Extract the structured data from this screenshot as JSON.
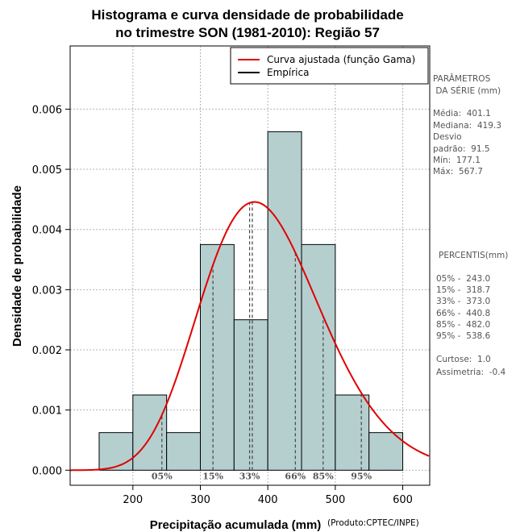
{
  "chart_data": {
    "type": "bar",
    "title_lines": [
      "Histograma e curva densidade de probabilidade",
      "no trimestre SON (1981-2010): Região 57"
    ],
    "xlabel": "Precipitação acumulada (mm)",
    "ylabel": "Densidade de probabilidade",
    "credit": "(Produto:CPTEC/INPE)",
    "xlim": [
      107,
      640
    ],
    "ylim": [
      -0.00025,
      0.00705
    ],
    "xticks": [
      200,
      300,
      400,
      500,
      600
    ],
    "yticks": [
      0.0,
      0.001,
      0.002,
      0.003,
      0.004,
      0.005,
      0.006
    ],
    "ytick_labels": [
      "0.000",
      "0.001",
      "0.002",
      "0.003",
      "0.004",
      "0.005",
      "0.006"
    ],
    "bar_color": "#b5cfcf",
    "curve_color": "#e00000",
    "bins": [
      {
        "from": 150,
        "to": 200,
        "density": 0.000625
      },
      {
        "from": 200,
        "to": 250,
        "density": 0.00125
      },
      {
        "from": 250,
        "to": 300,
        "density": 0.000625
      },
      {
        "from": 300,
        "to": 350,
        "density": 0.00375
      },
      {
        "from": 350,
        "to": 400,
        "density": 0.0025
      },
      {
        "from": 400,
        "to": 450,
        "density": 0.005625
      },
      {
        "from": 450,
        "to": 500,
        "density": 0.00375
      },
      {
        "from": 500,
        "to": 550,
        "density": 0.00125
      },
      {
        "from": 550,
        "to": 600,
        "density": 0.000625
      }
    ],
    "gamma_fit": {
      "mean": 401.1,
      "sd": 91.5
    },
    "mode_line_x": 377,
    "percentile_lines": [
      {
        "label": "05%",
        "x": 243.0
      },
      {
        "label": "15%",
        "x": 318.7
      },
      {
        "label": "33%",
        "x": 373.0
      },
      {
        "label": "66%",
        "x": 440.8
      },
      {
        "label": "85%",
        "x": 482.0
      },
      {
        "label": "95%",
        "x": 538.6
      }
    ],
    "legend": {
      "position": "top-right",
      "entries": [
        {
          "label": "Curva ajustada (função Gama)",
          "color": "#e00000"
        },
        {
          "label": "Empírica",
          "color": "#000000"
        }
      ]
    }
  },
  "side_panel": {
    "params_heading": [
      "PARÂMETROS",
      " DA SÉRIE (mm)"
    ],
    "params": [
      "Média:  401.1",
      "Mediana:  419.3",
      "Desvio",
      "padrão:  91.5",
      "Mín:  177.1",
      "Máx:  567.7"
    ],
    "percentis_heading": "PERCENTIS(mm)",
    "percentis": [
      "05% -  243.0",
      "15% -  318.7",
      "33% -  373.0",
      "66% -  440.8",
      "85% -  482.0",
      "95% -  538.6"
    ],
    "stats": [
      "Curtose:  1.0",
      "Assimetria:  -0.4"
    ]
  }
}
